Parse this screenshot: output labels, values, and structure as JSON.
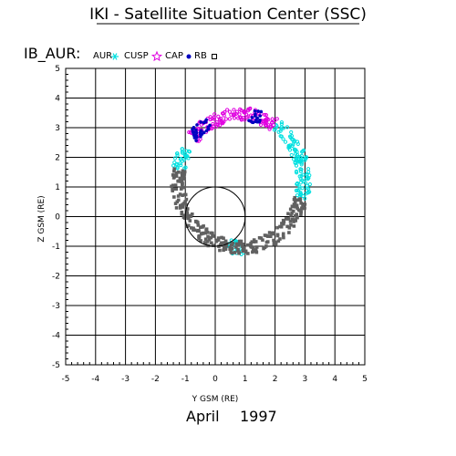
{
  "chart_data": {
    "type": "scatter",
    "title": "IKI - Satellite Situation Center (SSC)",
    "subtitle": "IB_AUR:",
    "xlabel": "Y GSM (RE)",
    "ylabel": "Z GSM (RE)",
    "footer_month": "April",
    "footer_year": "1997",
    "xlim": [
      -5,
      5
    ],
    "ylim": [
      -5,
      5
    ],
    "xticks": [
      "-5",
      "-4",
      "-3",
      "-2",
      "-1",
      "0",
      "1",
      "2",
      "3",
      "4",
      "5"
    ],
    "yticks": [
      "-5",
      "-4",
      "-3",
      "-2",
      "-1",
      "0",
      "1",
      "2",
      "3",
      "4",
      "5"
    ],
    "grid": true,
    "earth_radius": 1,
    "legend": [
      {
        "label": "AUR",
        "symbol": "asterisk",
        "color": "#00e0e0"
      },
      {
        "label": "CUSP",
        "symbol": "star",
        "color": "#e000e0"
      },
      {
        "label": "CAP",
        "symbol": "dot",
        "color": "#0000c0"
      },
      {
        "label": "RB",
        "symbol": "square",
        "color": "#606060"
      }
    ],
    "orbit": {
      "center": [
        0.85,
        1.2
      ],
      "radius_y": 2.1,
      "radius_z": 2.25,
      "band_width": 0.45
    },
    "series": [
      {
        "name": "AUR",
        "color": "#00e0e0",
        "arcs_deg": [
          [
            -15,
            58
          ],
          [
            150,
            170
          ],
          [
            258,
            273
          ]
        ]
      },
      {
        "name": "CUSP",
        "color": "#e000e0",
        "arcs_deg": [
          [
            58,
            140
          ]
        ]
      },
      {
        "name": "CAP",
        "color": "#0000c0",
        "arcs_deg": [
          [
            70,
            82
          ],
          [
            120,
            140
          ]
        ]
      },
      {
        "name": "RB",
        "color": "#606060",
        "arcs_deg": [
          [
            -100,
            -15
          ],
          [
            170,
            258
          ]
        ]
      }
    ]
  }
}
